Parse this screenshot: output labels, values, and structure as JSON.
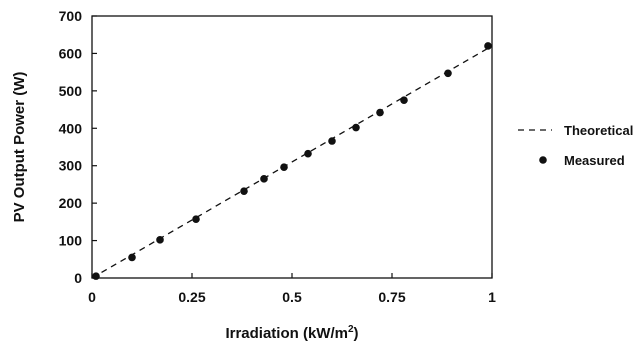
{
  "chart_data": {
    "type": "scatter",
    "title": "",
    "xlabel": "Irradiation (kW/m²)",
    "xlabel_main": "Irradiation (kW/m",
    "xlabel_sup": "2",
    "xlabel_tail": ")",
    "ylabel": "PV Output Power (W)",
    "xlim": [
      0,
      1
    ],
    "ylim": [
      0,
      700
    ],
    "x_ticks": [
      0,
      0.25,
      0.5,
      0.75,
      1
    ],
    "x_tick_labels": [
      "0",
      "0.25",
      "0.5",
      "0.75",
      "1"
    ],
    "y_ticks": [
      0,
      100,
      200,
      300,
      400,
      500,
      600,
      700
    ],
    "y_tick_labels": [
      "0",
      "100",
      "200",
      "300",
      "400",
      "500",
      "600",
      "700"
    ],
    "grid": false,
    "legend_position": "right",
    "series": [
      {
        "name": "Theoretical",
        "style": "dashed-line",
        "x": [
          0,
          1
        ],
        "y": [
          0,
          620
        ]
      },
      {
        "name": "Measured",
        "style": "markers",
        "x": [
          0.01,
          0.1,
          0.17,
          0.26,
          0.38,
          0.43,
          0.48,
          0.54,
          0.6,
          0.66,
          0.72,
          0.78,
          0.89,
          0.99
        ],
        "y": [
          5,
          55,
          102,
          157,
          232,
          265,
          296,
          332,
          366,
          402,
          442,
          475,
          547,
          620
        ]
      }
    ],
    "colors": {
      "line": "#111111",
      "marker": "#111111",
      "text": "#111111"
    }
  }
}
